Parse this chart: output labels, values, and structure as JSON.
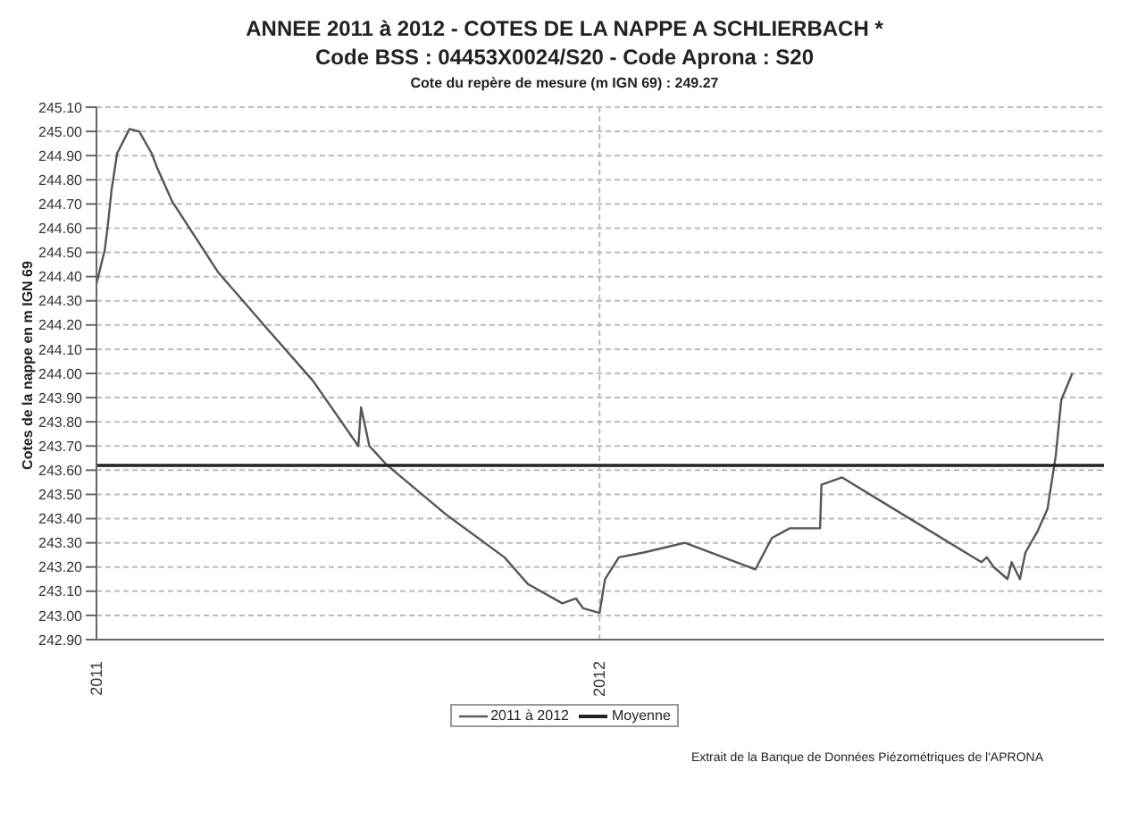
{
  "chart_data": {
    "type": "line",
    "title": "ANNEE 2011 à 2012 - COTES DE LA NAPPE A SCHLIERBACH *",
    "subtitle": "Code BSS : 04453X0024/S20 - Code Aprona : S20",
    "ylabel": "Cotes de la nappe en m IGN 69",
    "annotations": [
      "Cote du repère de mesure (m IGN 69) : 249.27",
      "Extrait de la Banque de Données Piézométriques de l'APRONA"
    ],
    "xlim": [
      "2011-01-01",
      "2013-01-01"
    ],
    "xticks": [
      {
        "value": "2011-01-01",
        "label": "2011"
      },
      {
        "value": "2012-01-01",
        "label": "2012"
      }
    ],
    "ylim": [
      242.9,
      245.1
    ],
    "yticks": [
      {
        "value": 242.9,
        "label": "242.90"
      },
      {
        "value": 243.0,
        "label": "243.00"
      },
      {
        "value": 243.1,
        "label": "243.10"
      },
      {
        "value": 243.2,
        "label": "243.20"
      },
      {
        "value": 243.3,
        "label": "243.30"
      },
      {
        "value": 243.4,
        "label": "243.40"
      },
      {
        "value": 243.5,
        "label": "243.50"
      },
      {
        "value": 243.6,
        "label": "243.60"
      },
      {
        "value": 243.7,
        "label": "243.70"
      },
      {
        "value": 243.8,
        "label": "243.80"
      },
      {
        "value": 243.9,
        "label": "243.90"
      },
      {
        "value": 244.0,
        "label": "244.00"
      },
      {
        "value": 244.1,
        "label": "244.10"
      },
      {
        "value": 244.2,
        "label": "244.20"
      },
      {
        "value": 244.3,
        "label": "244.30"
      },
      {
        "value": 244.4,
        "label": "244.40"
      },
      {
        "value": 244.5,
        "label": "244.50"
      },
      {
        "value": 244.6,
        "label": "244.60"
      },
      {
        "value": 244.7,
        "label": "244.70"
      },
      {
        "value": 244.8,
        "label": "244.80"
      },
      {
        "value": 244.9,
        "label": "244.90"
      },
      {
        "value": 245.0,
        "label": "245.00"
      },
      {
        "value": 245.1,
        "label": "245.10"
      }
    ],
    "grid": true,
    "legend": "bottom",
    "marker": "none",
    "line_style": "solid",
    "series": [
      {
        "name": "2011 à 2012",
        "color": "#555555",
        "x": [
          "2011-01-01",
          "2011-01-07",
          "2011-01-09",
          "2011-01-12",
          "2011-01-16",
          "2011-01-25",
          "2011-02-01",
          "2011-02-10",
          "2011-02-14",
          "2011-02-25",
          "2011-03-30",
          "2011-05-04",
          "2011-06-07",
          "2011-07-10",
          "2011-07-12",
          "2011-07-18",
          "2011-07-31",
          "2011-09-11",
          "2011-10-24",
          "2011-11-10",
          "2011-12-05",
          "2011-12-15",
          "2011-12-20",
          "2012-01-01",
          "2012-01-05",
          "2012-01-15",
          "2012-02-02",
          "2012-03-03",
          "2012-04-23",
          "2012-05-05",
          "2012-05-18",
          "2012-06-09",
          "2012-06-10",
          "2012-06-25",
          "2012-10-04",
          "2012-10-08",
          "2012-10-13",
          "2012-10-23",
          "2012-10-26",
          "2012-11-01",
          "2012-11-05",
          "2012-11-14",
          "2012-11-21",
          "2012-11-27",
          "2012-12-01",
          "2012-12-09"
        ],
        "values": [
          244.37,
          244.51,
          244.6,
          244.76,
          244.91,
          245.01,
          245.0,
          244.91,
          244.85,
          244.71,
          244.42,
          244.19,
          243.97,
          243.7,
          243.86,
          243.7,
          243.62,
          243.42,
          243.24,
          243.13,
          243.05,
          243.07,
          243.03,
          243.01,
          243.15,
          243.24,
          243.26,
          243.3,
          243.19,
          243.32,
          243.36,
          243.36,
          243.54,
          243.57,
          243.22,
          243.24,
          243.2,
          243.15,
          243.22,
          243.15,
          243.26,
          243.35,
          243.44,
          243.66,
          243.89,
          244.0
        ]
      },
      {
        "name": "Moyenne",
        "color": "#222222",
        "x": [
          "2011-01-01",
          "2013-01-01"
        ],
        "values": [
          243.62,
          243.62
        ]
      }
    ]
  }
}
